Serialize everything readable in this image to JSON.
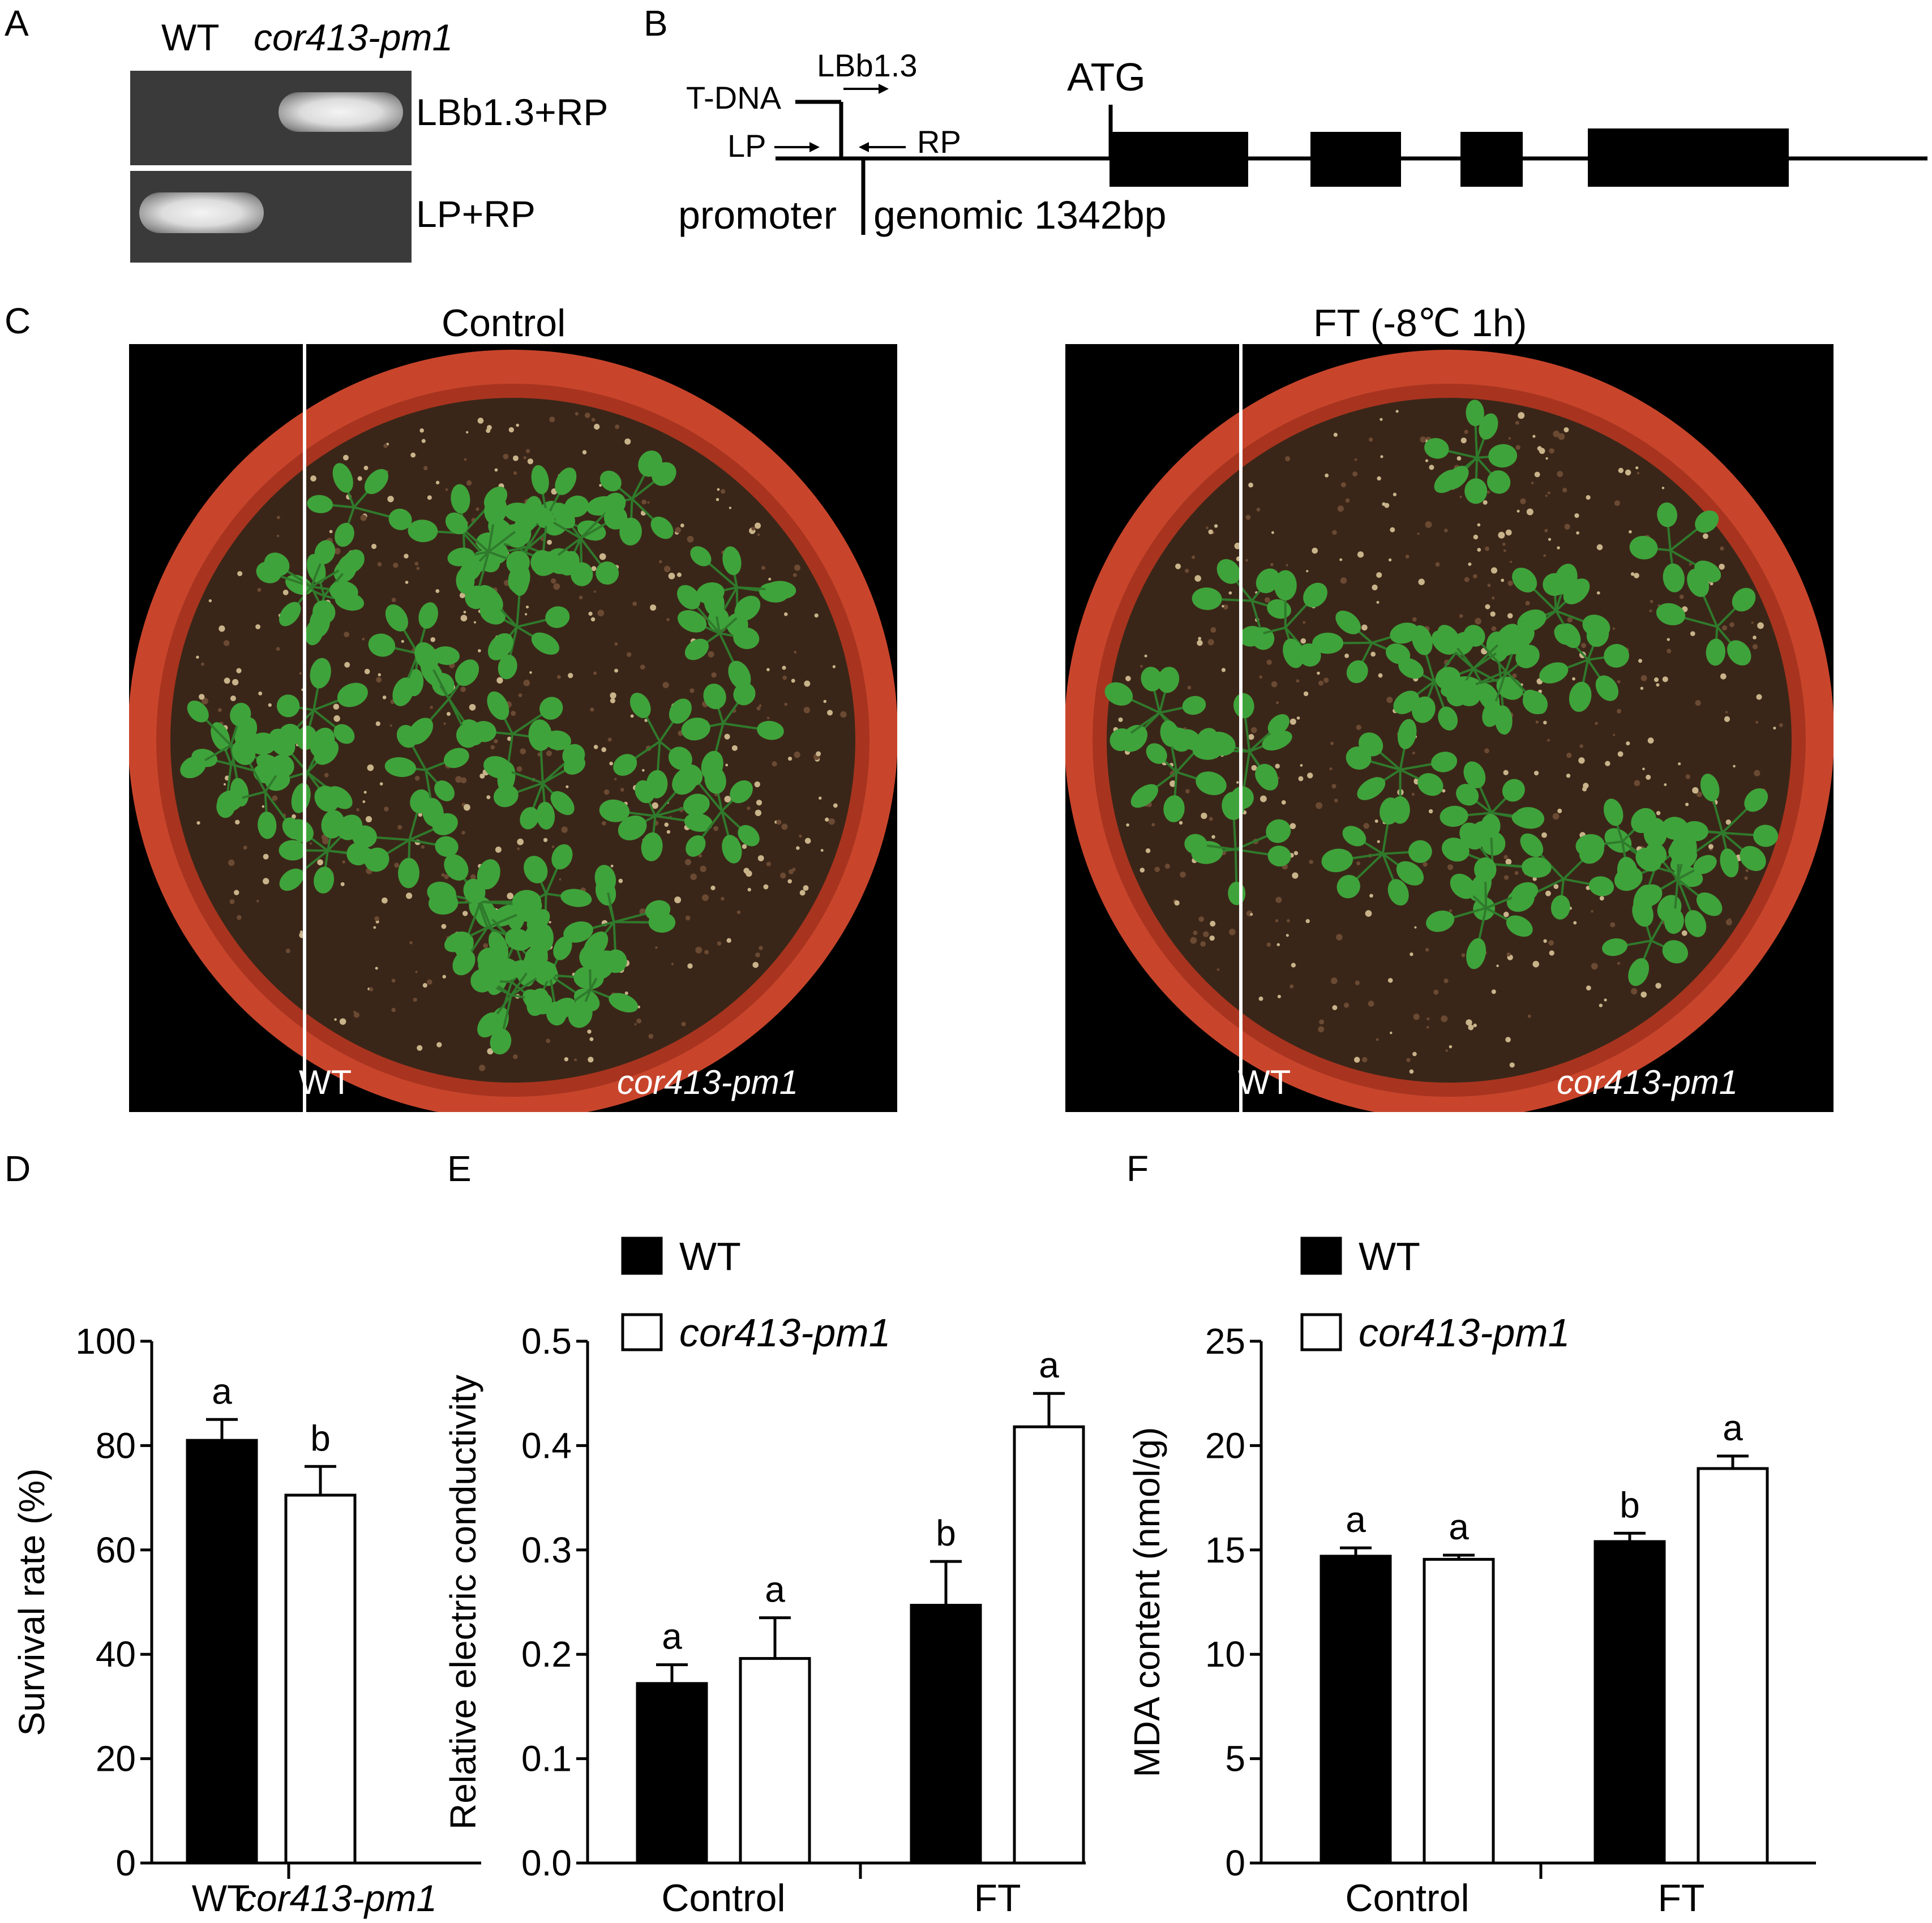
{
  "panels": {
    "a": {
      "letter": "A",
      "lanes": [
        "WT",
        "cor413-pm1"
      ],
      "rows": [
        "LBb1.3+RP",
        "LP+RP"
      ]
    },
    "b": {
      "letter": "B",
      "labels": {
        "tdna": "T-DNA",
        "lbb": "LBb1.3",
        "lp": "LP",
        "rp": "RP",
        "atg": "ATG",
        "promoter": "promoter",
        "genomic": "genomic 1342bp"
      }
    },
    "c": {
      "letter": "C",
      "control_title": "Control",
      "ft_title": "FT (-8℃ 1h)",
      "wt_label": "WT",
      "mut_label": "cor413-pm1"
    }
  },
  "colors": {
    "wt_bar": "#000000",
    "mut_bar": "#ffffff",
    "pot": "#c8452c",
    "soil": "#3a2618",
    "leaf": "#3fa33b"
  },
  "chart_data": [
    {
      "panel": "D",
      "type": "bar",
      "categories": [
        "WT",
        "cor413-pm1"
      ],
      "values": [
        81,
        70.5
      ],
      "errors": [
        4,
        5.5
      ],
      "letters": [
        "a",
        "b"
      ],
      "ylabel": "Survival rate (%)",
      "ylim": [
        0,
        100
      ],
      "yticks": [
        "0",
        "20",
        "40",
        "60",
        "80",
        "100"
      ]
    },
    {
      "panel": "E",
      "type": "bar",
      "categories": [
        "Control",
        "FT"
      ],
      "series": [
        {
          "name": "WT",
          "values": [
            0.172,
            0.247
          ],
          "errors": [
            0.018,
            0.042
          ],
          "letters": [
            "a",
            "b"
          ]
        },
        {
          "name": "cor413-pm1",
          "values": [
            0.196,
            0.418
          ],
          "errors": [
            0.039,
            0.032
          ],
          "letters": [
            "a",
            "a"
          ]
        }
      ],
      "ylabel": "Relative electric conductivity",
      "ylim": [
        0,
        0.5
      ],
      "yticks": [
        "0.0",
        "0.1",
        "0.2",
        "0.3",
        "0.4",
        "0.5"
      ],
      "legend": "top-left"
    },
    {
      "panel": "F",
      "type": "bar",
      "categories": [
        "Control",
        "FT"
      ],
      "series": [
        {
          "name": "WT",
          "values": [
            14.7,
            15.4
          ],
          "errors": [
            0.4,
            0.4
          ],
          "letters": [
            "a",
            "b"
          ]
        },
        {
          "name": "cor413-pm1",
          "values": [
            14.55,
            18.9
          ],
          "errors": [
            0.2,
            0.6
          ],
          "letters": [
            "a",
            "a"
          ]
        }
      ],
      "ylabel": "MDA content (nmol/g)",
      "ylim": [
        0,
        25
      ],
      "yticks": [
        "0",
        "5",
        "10",
        "15",
        "20",
        "25"
      ],
      "legend": "top-left"
    }
  ]
}
